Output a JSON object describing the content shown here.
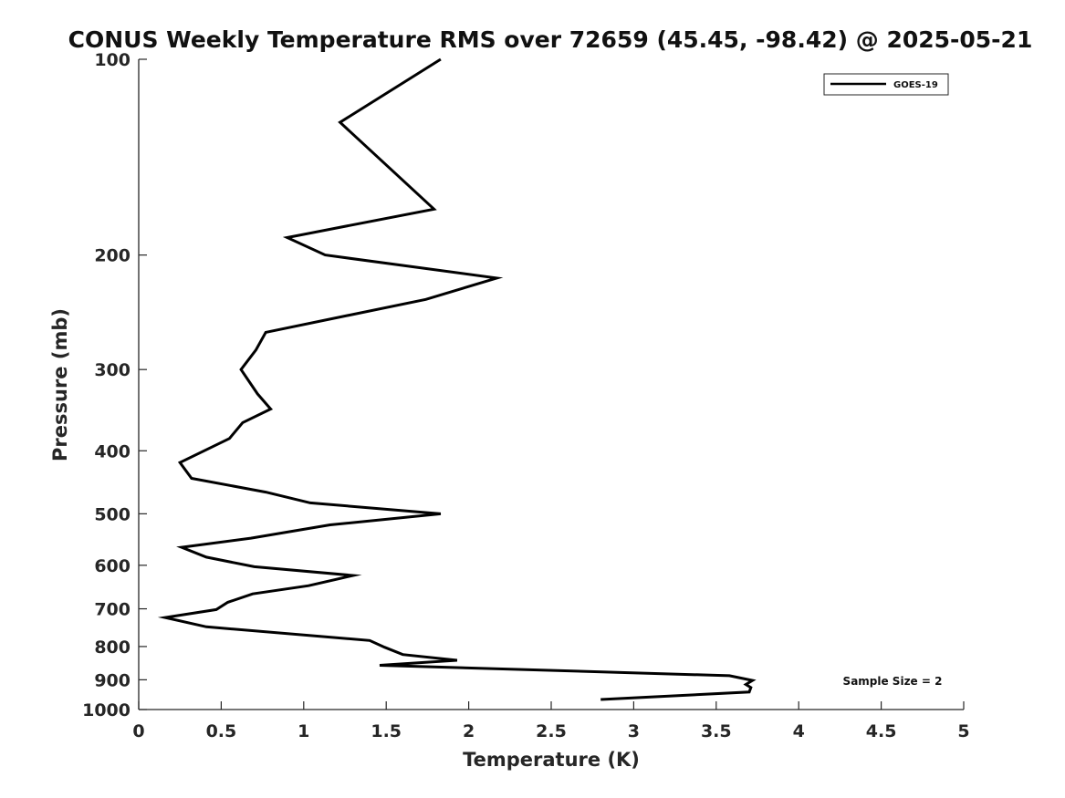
{
  "chart_data": {
    "type": "line",
    "title": "CONUS Weekly Temperature RMS over 72659 (45.45, -98.42) @ 2025-05-21",
    "xlabel": "Temperature (K)",
    "ylabel": "Pressure (mb)",
    "xlim": [
      0,
      5
    ],
    "ylim": [
      1000,
      100
    ],
    "y_scale": "log",
    "y_reversed": true,
    "x_ticks": [
      "0",
      "0.5",
      "1",
      "1.5",
      "2",
      "2.5",
      "3",
      "3.5",
      "4",
      "4.5",
      "5"
    ],
    "y_ticks": [
      "100",
      "200",
      "300",
      "400",
      "500",
      "600",
      "700",
      "800",
      "900",
      "1000"
    ],
    "legend_placement": "top-right",
    "grid": false,
    "annotation": "Sample Size = 2",
    "series": [
      {
        "name": "GOES-19",
        "color": "#000000",
        "x": [
          1.83,
          1.22,
          1.79,
          0.9,
          1.13,
          2.17,
          1.74,
          0.77,
          0.71,
          0.62,
          0.72,
          0.8,
          0.63,
          0.55,
          0.25,
          0.32,
          0.77,
          1.04,
          1.83,
          1.16,
          0.68,
          0.26,
          0.41,
          0.7,
          1.3,
          1.03,
          0.69,
          0.54,
          0.47,
          0.16,
          0.41,
          1.4,
          1.49,
          1.6,
          1.93,
          1.46,
          3.58,
          3.72,
          3.68,
          3.71,
          3.7,
          2.8
        ],
        "y": [
          100,
          125,
          170,
          188,
          200,
          217,
          234,
          263,
          280,
          300,
          327,
          345,
          362,
          383,
          417,
          441,
          463,
          481,
          500,
          520,
          545,
          563,
          583,
          603,
          622,
          645,
          664,
          684,
          702,
          722,
          746,
          783,
          802,
          823,
          840,
          855,
          887,
          902,
          915,
          925,
          940,
          965
        ]
      }
    ]
  }
}
